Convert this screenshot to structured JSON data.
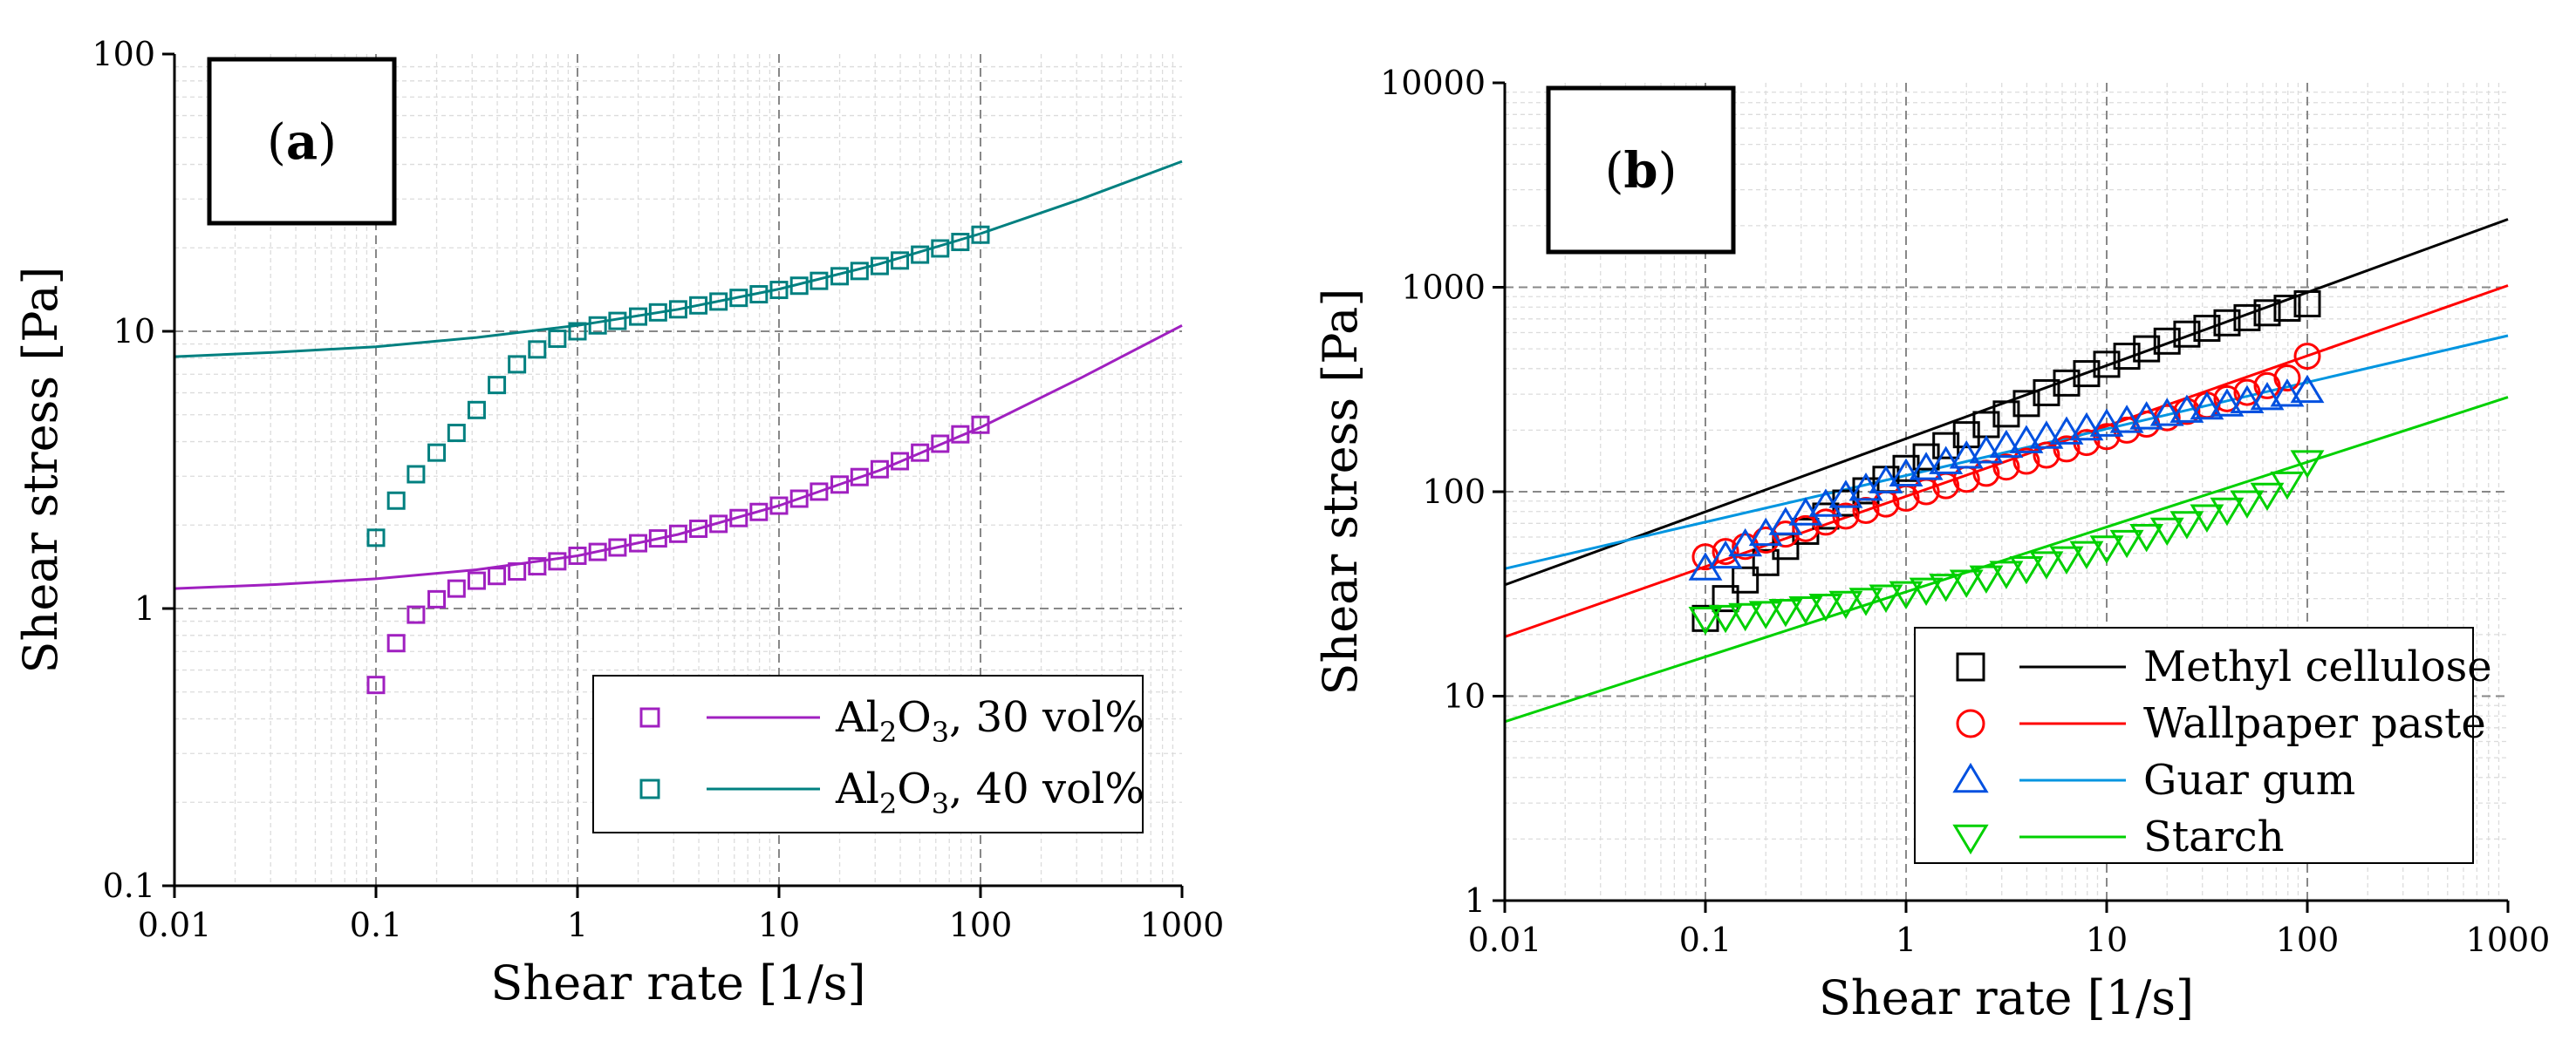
{
  "chart_data": [
    {
      "type": "scatter",
      "panel_label": "a",
      "xlabel": "Shear rate [1/s]",
      "ylabel": "Shear stress [Pa]",
      "xscale": "log",
      "yscale": "log",
      "xlim": [
        0.01,
        1000
      ],
      "ylim": [
        0.1,
        100
      ],
      "x_ticks": [
        "0.01",
        "0.1",
        "1",
        "10",
        "100",
        "1000"
      ],
      "y_ticks": [
        "0.1",
        "1",
        "10",
        "100"
      ],
      "legend_position": "bottom-right",
      "series": [
        {
          "name": "Al2O3, 30 vol%",
          "legend": {
            "base": "Al",
            "sub1": "2",
            "mid": "O",
            "sub2": "3",
            "rest": ", 30 vol%"
          },
          "color": "#A020C0",
          "marker": "square",
          "x": [
            0.1,
            0.126,
            0.158,
            0.2,
            0.251,
            0.316,
            0.398,
            0.501,
            0.631,
            0.794,
            1,
            1.26,
            1.58,
            2,
            2.51,
            3.16,
            3.98,
            5.01,
            6.31,
            7.94,
            10,
            12.6,
            15.8,
            20,
            25.1,
            31.6,
            39.8,
            50.1,
            63.1,
            79.4,
            100
          ],
          "y": [
            0.53,
            0.75,
            0.95,
            1.08,
            1.18,
            1.26,
            1.31,
            1.36,
            1.42,
            1.48,
            1.55,
            1.6,
            1.66,
            1.72,
            1.79,
            1.86,
            1.94,
            2.02,
            2.12,
            2.23,
            2.35,
            2.49,
            2.64,
            2.8,
            2.98,
            3.18,
            3.4,
            3.65,
            3.93,
            4.25,
            4.6
          ],
          "fit": {
            "x": [
              0.01,
              0.0316,
              0.1,
              0.316,
              1,
              3.16,
              10,
              31.6,
              100,
              316,
              1000
            ],
            "y": [
              1.18,
              1.22,
              1.28,
              1.38,
              1.55,
              1.85,
              2.35,
              3.15,
              4.5,
              6.8,
              10.5
            ]
          }
        },
        {
          "name": "Al2O3, 40 vol%",
          "legend": {
            "base": "Al",
            "sub1": "2",
            "mid": "O",
            "sub2": "3",
            "rest": ", 40 vol%"
          },
          "color": "#008080",
          "marker": "square",
          "x": [
            0.1,
            0.126,
            0.158,
            0.2,
            0.251,
            0.316,
            0.398,
            0.501,
            0.631,
            0.794,
            1,
            1.26,
            1.58,
            2,
            2.51,
            3.16,
            3.98,
            5.01,
            6.31,
            7.94,
            10,
            12.6,
            15.8,
            20,
            25.1,
            31.6,
            39.8,
            50.1,
            63.1,
            79.4,
            100
          ],
          "y": [
            1.8,
            2.45,
            3.05,
            3.65,
            4.3,
            5.2,
            6.4,
            7.6,
            8.6,
            9.4,
            10.0,
            10.5,
            10.9,
            11.3,
            11.7,
            12.0,
            12.4,
            12.8,
            13.2,
            13.6,
            14.1,
            14.6,
            15.2,
            15.8,
            16.5,
            17.2,
            18.0,
            18.9,
            19.9,
            21.0,
            22.3
          ],
          "fit": {
            "x": [
              0.01,
              0.0316,
              0.1,
              0.316,
              1,
              3.16,
              10,
              31.6,
              100,
              316,
              1000
            ],
            "y": [
              8.1,
              8.4,
              8.8,
              9.5,
              10.5,
              12.0,
              14.2,
              17.5,
              22.5,
              30,
              41
            ]
          }
        }
      ]
    },
    {
      "type": "scatter",
      "panel_label": "b",
      "xlabel": "Shear rate  [1/s]",
      "ylabel": "Shear stress [Pa]",
      "xscale": "log",
      "yscale": "log",
      "xlim": [
        0.01,
        1000
      ],
      "ylim": [
        1,
        10000
      ],
      "x_ticks": [
        "0.01",
        "0.1",
        "1",
        "10",
        "100",
        "1000"
      ],
      "y_ticks": [
        "1",
        "10",
        "100",
        "1000",
        "10000"
      ],
      "legend_position": "bottom-right",
      "series": [
        {
          "name": "Methyl cellulose",
          "color": "#000000",
          "marker": "square",
          "x": [
            0.1,
            0.126,
            0.158,
            0.2,
            0.251,
            0.316,
            0.398,
            0.501,
            0.631,
            0.794,
            1,
            1.26,
            1.58,
            2,
            2.51,
            3.16,
            3.98,
            5.01,
            6.31,
            7.94,
            10,
            12.6,
            15.8,
            20,
            25.1,
            31.6,
            39.8,
            50.1,
            63.1,
            79.4,
            100
          ],
          "y": [
            24,
            30,
            37,
            45,
            54,
            64,
            76,
            88,
            101,
            115,
            130,
            148,
            168,
            190,
            213,
            240,
            270,
            305,
            340,
            378,
            420,
            460,
            500,
            545,
            590,
            630,
            670,
            710,
            750,
            790,
            830
          ],
          "fit": {
            "x": [
              0.01,
              1000
            ],
            "y": [
              35,
              2150
            ]
          }
        },
        {
          "name": "Wallpaper paste",
          "color": "#FF0000",
          "marker": "circle",
          "x": [
            0.1,
            0.126,
            0.158,
            0.2,
            0.251,
            0.316,
            0.398,
            0.501,
            0.631,
            0.794,
            1,
            1.26,
            1.58,
            2,
            2.51,
            3.16,
            3.98,
            5.01,
            6.31,
            7.94,
            10,
            12.6,
            15.8,
            20,
            25.1,
            31.6,
            39.8,
            50.1,
            63.1,
            79.4,
            100
          ],
          "y": [
            48,
            51,
            54,
            58,
            62,
            66,
            71,
            76,
            81,
            87,
            93,
            100,
            107,
            115,
            123,
            132,
            141,
            151,
            162,
            174,
            186,
            200,
            214,
            230,
            247,
            265,
            285,
            306,
            330,
            360,
            460
          ],
          "fit": {
            "x": [
              0.01,
              1000
            ],
            "y": [
              19.5,
              1020
            ]
          }
        },
        {
          "name": "Guar gum",
          "color": "#0050E0",
          "fit_color": "#0095E0",
          "marker": "triangle-up",
          "x": [
            0.1,
            0.126,
            0.158,
            0.2,
            0.251,
            0.316,
            0.398,
            0.501,
            0.631,
            0.794,
            1,
            1.26,
            1.58,
            2,
            2.51,
            3.16,
            3.98,
            5.01,
            6.31,
            7.94,
            10,
            12.6,
            15.8,
            20,
            25.1,
            31.6,
            39.8,
            50.1,
            63.1,
            79.4,
            100
          ],
          "y": [
            42,
            48,
            55,
            62,
            70,
            78,
            86,
            95,
            103,
            112,
            121,
            130,
            139,
            148,
            157,
            167,
            176,
            185,
            194,
            203,
            212,
            221,
            230,
            239,
            248,
            257,
            266,
            276,
            286,
            297,
            310
          ],
          "fit": {
            "x": [
              0.01,
              1000
            ],
            "y": [
              42,
              580
            ]
          }
        },
        {
          "name": "Starch",
          "color": "#00D000",
          "marker": "triangle-down",
          "x": [
            0.1,
            0.126,
            0.158,
            0.2,
            0.251,
            0.316,
            0.398,
            0.501,
            0.631,
            0.794,
            1,
            1.26,
            1.58,
            2,
            2.51,
            3.16,
            3.98,
            5.01,
            6.31,
            7.94,
            10,
            12.6,
            15.8,
            20,
            25.1,
            31.6,
            39.8,
            50.1,
            63.1,
            79.4,
            100
          ],
          "y": [
            24,
            24.5,
            25,
            25.6,
            26.2,
            27,
            27.8,
            28.7,
            29.7,
            30.8,
            32,
            33.3,
            34.8,
            36.4,
            38.2,
            40.2,
            42.4,
            44.8,
            47.4,
            50.3,
            53.5,
            57,
            61,
            65.5,
            70.5,
            76,
            82,
            89,
            97,
            110,
            140
          ],
          "fit": {
            "x": [
              0.01,
              1000
            ],
            "y": [
              7.5,
              290
            ]
          }
        }
      ]
    }
  ]
}
